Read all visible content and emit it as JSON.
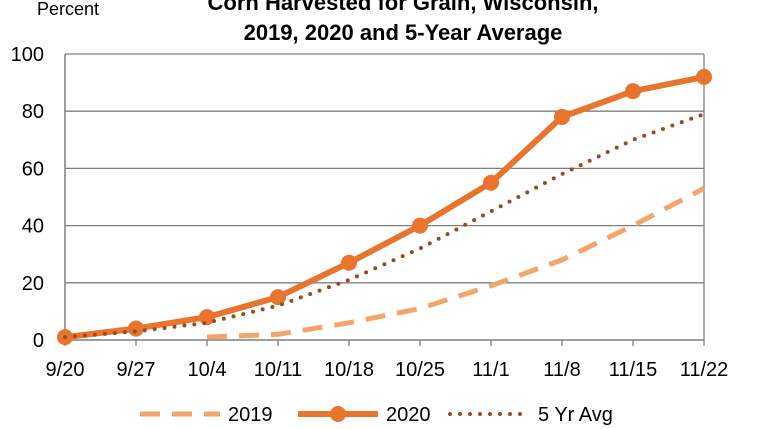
{
  "chart_data": {
    "type": "line",
    "title_line1": "Corn Harvested for Grain, Wisconsin,",
    "title_line2": "2019, 2020 and 5-Year Average",
    "ylabel": "Percent",
    "xlabel": "",
    "categories": [
      "9/20",
      "9/27",
      "10/4",
      "10/11",
      "10/18",
      "10/25",
      "11/1",
      "11/8",
      "11/15",
      "11/22"
    ],
    "ylim": [
      0,
      100
    ],
    "yticks": [
      0,
      20,
      40,
      60,
      80,
      100
    ],
    "grid": true,
    "legend_position": "bottom",
    "series": [
      {
        "name": "2019",
        "style": "dashed",
        "color": "#F4A56A",
        "values": [
          null,
          null,
          1,
          2,
          6,
          11,
          19,
          28,
          40,
          53
        ]
      },
      {
        "name": "2020",
        "style": "solid-markers",
        "color": "#E8742D",
        "values": [
          1,
          4,
          8,
          15,
          27,
          40,
          55,
          78,
          87,
          92
        ]
      },
      {
        "name": "5 Yr Avg",
        "style": "dotted",
        "color": "#9A4A1C",
        "values": [
          1,
          3,
          6,
          12,
          21,
          32,
          45,
          58,
          70,
          79
        ]
      }
    ]
  }
}
